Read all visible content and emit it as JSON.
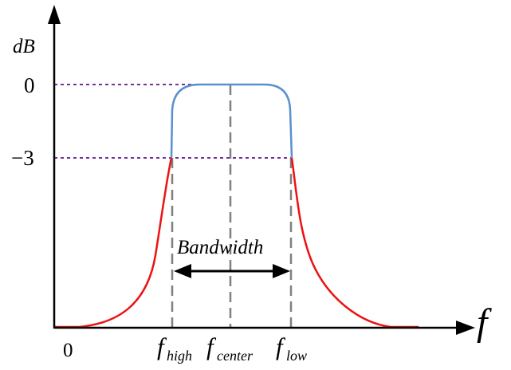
{
  "labels": {
    "y_axis": "dB",
    "x_axis": "f",
    "y_tick_0": "0",
    "y_tick_minus3": "−3",
    "x_origin": "0",
    "bandwidth": "Bandwidth",
    "f_high_base": "f",
    "f_high_sub": "high",
    "f_center_base": "f",
    "f_center_sub": "center",
    "f_low_base": "f",
    "f_low_sub": "low"
  },
  "colors": {
    "axis": "#000000",
    "reference_line": "#7030a0",
    "marker_line": "#808080",
    "passband_curve": "#5b8fd0",
    "rolloff_curve": "#ee1111"
  }
}
